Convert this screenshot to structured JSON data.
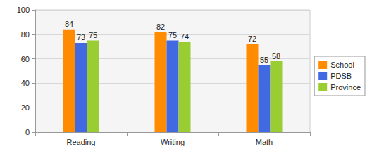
{
  "chart_data": {
    "type": "bar",
    "categories": [
      "Reading",
      "Writing",
      "Math"
    ],
    "series": [
      {
        "name": "School",
        "color": "#ff8c00",
        "values": [
          84,
          82,
          72
        ]
      },
      {
        "name": "PDSB",
        "color": "#4169e1",
        "values": [
          73,
          75,
          55
        ]
      },
      {
        "name": "Province",
        "color": "#9acd32",
        "values": [
          75,
          74,
          58
        ]
      }
    ],
    "ylim": [
      0,
      100
    ],
    "yticks": [
      0,
      20,
      40,
      60,
      80,
      100
    ],
    "grid": true,
    "legend": "right",
    "data_labels": true
  }
}
